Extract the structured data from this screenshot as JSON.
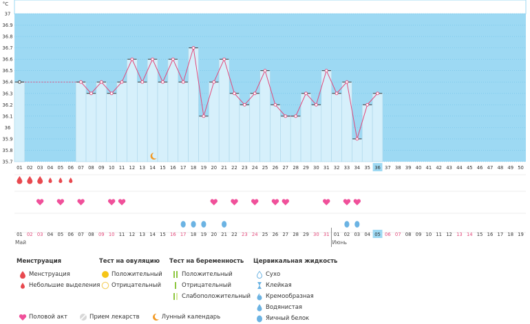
{
  "chart_data": {
    "type": "line",
    "y_unit": "°C",
    "ylim": [
      35.7,
      37.0
    ],
    "y_ticks": [
      "37",
      "36.9",
      "36.8",
      "36.7",
      "36.6",
      "36.5",
      "36.4",
      "36.3",
      "36.2",
      "36.1",
      "36",
      "35.9",
      "35.8",
      "35.7"
    ],
    "cycle_days": [
      "01",
      "02",
      "03",
      "04",
      "05",
      "06",
      "07",
      "08",
      "09",
      "10",
      "11",
      "12",
      "13",
      "14",
      "15",
      "16",
      "17",
      "18",
      "19",
      "20",
      "21",
      "22",
      "23",
      "24",
      "25",
      "26",
      "27",
      "28",
      "29",
      "30",
      "31",
      "32",
      "33",
      "34",
      "35",
      "36",
      "37",
      "38",
      "39",
      "40",
      "41",
      "42",
      "43",
      "44",
      "45",
      "46",
      "47",
      "48",
      "49",
      "50"
    ],
    "current_cycle_day": "36",
    "baseline_value": 36.4,
    "baseline_days": [
      1,
      6
    ],
    "temperature": [
      {
        "day": 7,
        "value": 36.4
      },
      {
        "day": 8,
        "value": 36.3
      },
      {
        "day": 9,
        "value": 36.4
      },
      {
        "day": 10,
        "value": 36.3
      },
      {
        "day": 11,
        "value": 36.4
      },
      {
        "day": 12,
        "value": 36.6
      },
      {
        "day": 13,
        "value": 36.4
      },
      {
        "day": 14,
        "value": 36.6
      },
      {
        "day": 15,
        "value": 36.4
      },
      {
        "day": 16,
        "value": 36.6
      },
      {
        "day": 17,
        "value": 36.4
      },
      {
        "day": 18,
        "value": 36.7
      },
      {
        "day": 19,
        "value": 36.1
      },
      {
        "day": 20,
        "value": 36.4
      },
      {
        "day": 21,
        "value": 36.6
      },
      {
        "day": 22,
        "value": 36.3
      },
      {
        "day": 23,
        "value": 36.2
      },
      {
        "day": 24,
        "value": 36.3
      },
      {
        "day": 25,
        "value": 36.5
      },
      {
        "day": 26,
        "value": 36.2
      },
      {
        "day": 27,
        "value": 36.1
      },
      {
        "day": 28,
        "value": 36.1
      },
      {
        "day": 29,
        "value": 36.3
      },
      {
        "day": 30,
        "value": 36.2
      },
      {
        "day": 31,
        "value": 36.5
      },
      {
        "day": 32,
        "value": 36.3
      },
      {
        "day": 33,
        "value": 36.4
      },
      {
        "day": 34,
        "value": 35.9
      },
      {
        "day": 35,
        "value": 36.2
      },
      {
        "day": 36,
        "value": 36.3
      }
    ],
    "markers": {
      "menstruation_heavy_days": [
        1,
        2,
        3
      ],
      "menstruation_light_days": [
        4,
        5,
        6
      ],
      "intercourse_days": [
        3,
        5,
        7,
        10,
        11,
        20,
        22,
        24,
        26,
        27,
        31,
        33,
        34
      ],
      "egg_white_days": [
        17,
        18,
        19,
        21,
        33,
        34
      ],
      "lunar_calendar_day": 14
    },
    "calendar_dates": [
      {
        "label": "01",
        "red": false
      },
      {
        "label": "02",
        "red": true
      },
      {
        "label": "03",
        "red": true
      },
      {
        "label": "04",
        "red": false
      },
      {
        "label": "05",
        "red": false
      },
      {
        "label": "06",
        "red": false
      },
      {
        "label": "07",
        "red": false
      },
      {
        "label": "08",
        "red": false
      },
      {
        "label": "09",
        "red": true
      },
      {
        "label": "10",
        "red": true
      },
      {
        "label": "11",
        "red": false
      },
      {
        "label": "12",
        "red": false
      },
      {
        "label": "13",
        "red": false
      },
      {
        "label": "14",
        "red": false
      },
      {
        "label": "15",
        "red": false
      },
      {
        "label": "16",
        "red": true
      },
      {
        "label": "17",
        "red": true
      },
      {
        "label": "18",
        "red": false
      },
      {
        "label": "19",
        "red": false
      },
      {
        "label": "20",
        "red": false
      },
      {
        "label": "21",
        "red": false
      },
      {
        "label": "22",
        "red": false
      },
      {
        "label": "23",
        "red": true
      },
      {
        "label": "24",
        "red": true
      },
      {
        "label": "25",
        "red": false
      },
      {
        "label": "26",
        "red": false
      },
      {
        "label": "27",
        "red": false
      },
      {
        "label": "28",
        "red": false
      },
      {
        "label": "29",
        "red": false
      },
      {
        "label": "30",
        "red": true
      },
      {
        "label": "31",
        "red": true
      },
      {
        "label": "01",
        "red": false
      },
      {
        "label": "02",
        "red": false
      },
      {
        "label": "03",
        "red": false
      },
      {
        "label": "04",
        "red": false
      },
      {
        "label": "05",
        "red": false
      },
      {
        "label": "06",
        "red": true
      },
      {
        "label": "07",
        "red": true
      },
      {
        "label": "08",
        "red": false
      },
      {
        "label": "09",
        "red": false
      },
      {
        "label": "10",
        "red": false
      },
      {
        "label": "11",
        "red": false
      },
      {
        "label": "12",
        "red": false
      },
      {
        "label": "13",
        "red": true
      },
      {
        "label": "14",
        "red": true
      },
      {
        "label": "15",
        "red": false
      },
      {
        "label": "16",
        "red": false
      },
      {
        "label": "17",
        "red": false
      },
      {
        "label": "18",
        "red": false
      },
      {
        "label": "19",
        "red": false
      }
    ],
    "month_labels": [
      {
        "text": "Май",
        "day": 1
      },
      {
        "text": "Июнь",
        "day": 32
      }
    ],
    "colors": {
      "plot_bg": "#9dd9f3",
      "bar_fill": "#d6f0fb",
      "bar_stroke": "#a9d4e8",
      "line": "#e2487a",
      "grid": "#6cc0e6",
      "highlight": "#9dd9f3",
      "red_date": "#e2487a",
      "drop_red": "#e8494f",
      "heart": "#f0509a",
      "drop_blue": "#6bb3e3"
    }
  },
  "legend": {
    "menstruation": {
      "title": "Менструация",
      "items": [
        "Менструация",
        "Небольшие выделения"
      ]
    },
    "ovulation": {
      "title": "Тест на овуляцию",
      "items": [
        "Положительный",
        "Отрицательный"
      ]
    },
    "pregnancy": {
      "title": "Тест на беременность",
      "items": [
        "Положительный",
        "Отрицательный",
        "Слабоположительный"
      ]
    },
    "cervical": {
      "title": "Цервикальная жидкость",
      "items": [
        "Сухо",
        "Клейкая",
        "Кремообразная",
        "Водянистая",
        "Яичный белок"
      ]
    },
    "bottom": [
      "Половой акт",
      "Прием лекарств",
      "Лунный календарь"
    ]
  }
}
